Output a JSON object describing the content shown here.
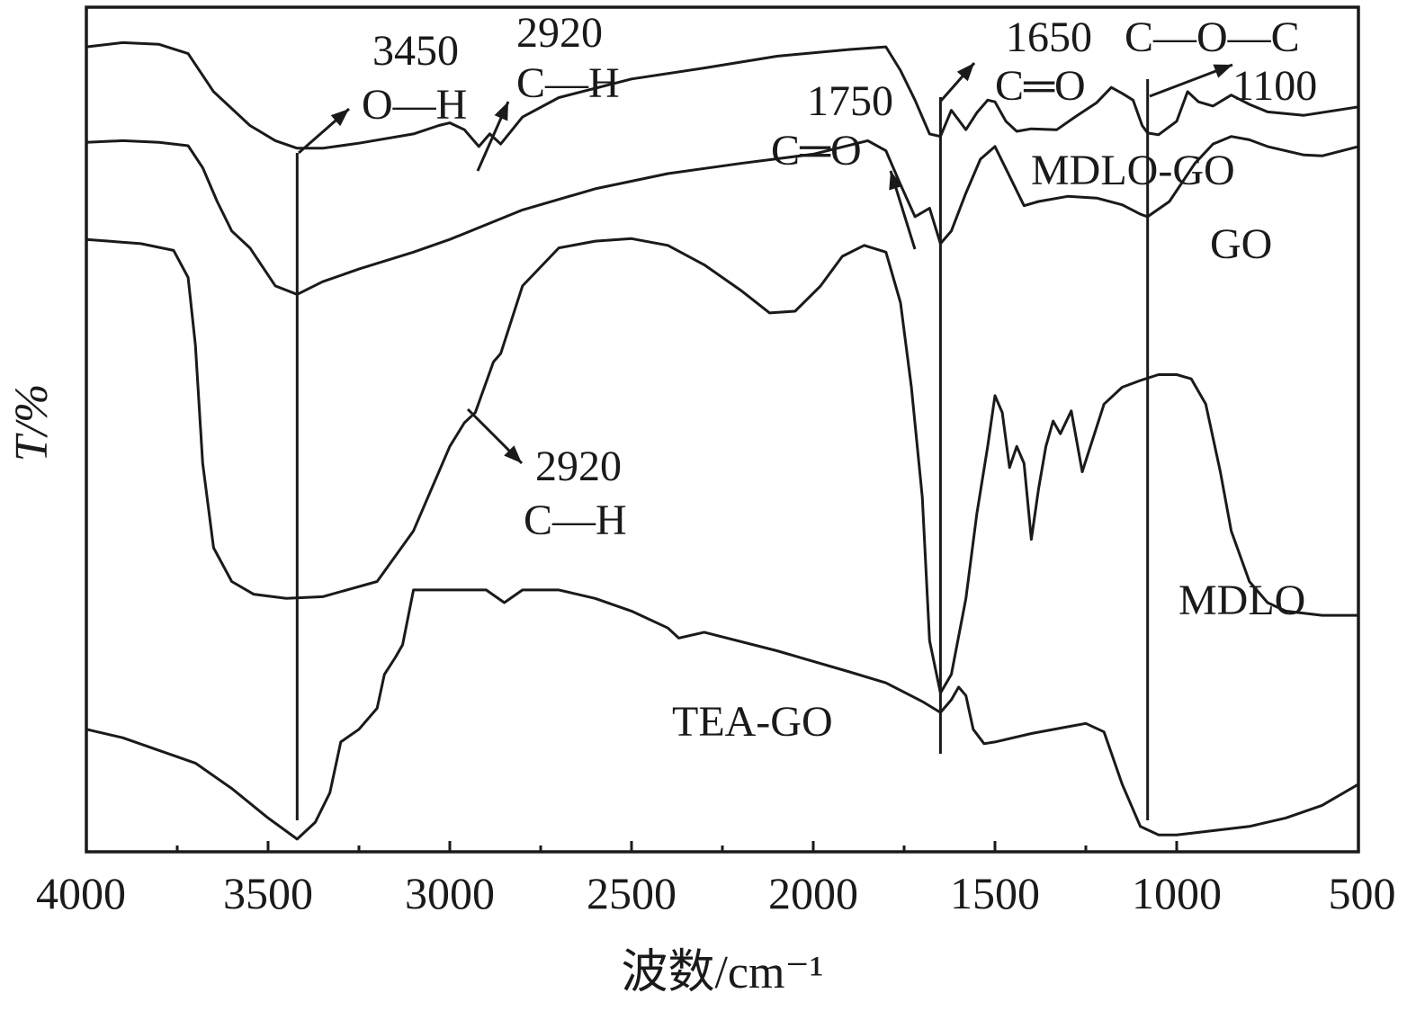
{
  "chart_data": {
    "type": "line",
    "xlabel": "波数/cm⁻¹",
    "ylabel": "T/%",
    "x_range": [
      4000,
      500
    ],
    "x_ticks": [
      4000,
      3500,
      3000,
      2500,
      2000,
      1500,
      1000,
      500
    ],
    "x_tick_labels": [
      "4000",
      "3500",
      "3000",
      "2500",
      "2000",
      "1500",
      "1000",
      "500"
    ],
    "y_ticks_shown": false,
    "legend": "none",
    "grid": false,
    "reference_lines": [
      3420,
      1650,
      1080
    ],
    "series": [
      {
        "name": "MDLO-GO",
        "points": [
          [
            4000,
            95.3
          ],
          [
            3900,
            95.8
          ],
          [
            3800,
            95.6
          ],
          [
            3720,
            94.5
          ],
          [
            3650,
            90
          ],
          [
            3550,
            86
          ],
          [
            3480,
            84.2
          ],
          [
            3420,
            83.3
          ],
          [
            3350,
            83.3
          ],
          [
            3250,
            83.9
          ],
          [
            3100,
            85
          ],
          [
            3030,
            86
          ],
          [
            3000,
            86.3
          ],
          [
            2960,
            85.5
          ],
          [
            2920,
            83.5
          ],
          [
            2890,
            85
          ],
          [
            2860,
            83.8
          ],
          [
            2800,
            87
          ],
          [
            2700,
            89.3
          ],
          [
            2500,
            91.5
          ],
          [
            2300,
            92.8
          ],
          [
            2100,
            94.2
          ],
          [
            1900,
            95
          ],
          [
            1800,
            95.3
          ],
          [
            1760,
            92.5
          ],
          [
            1720,
            89
          ],
          [
            1680,
            85
          ],
          [
            1650,
            84.7
          ],
          [
            1620,
            87.8
          ],
          [
            1580,
            85.5
          ],
          [
            1550,
            87.5
          ],
          [
            1520,
            89
          ],
          [
            1500,
            88.8
          ],
          [
            1470,
            86.5
          ],
          [
            1440,
            85.3
          ],
          [
            1400,
            85.6
          ],
          [
            1330,
            85.5
          ],
          [
            1280,
            87
          ],
          [
            1220,
            88.7
          ],
          [
            1180,
            90.5
          ],
          [
            1150,
            89.8
          ],
          [
            1120,
            89
          ],
          [
            1095,
            86
          ],
          [
            1080,
            85.1
          ],
          [
            1050,
            84.9
          ],
          [
            1000,
            86.5
          ],
          [
            970,
            90
          ],
          [
            940,
            88.8
          ],
          [
            900,
            88.3
          ],
          [
            850,
            89.6
          ],
          [
            800,
            88.5
          ],
          [
            750,
            87.6
          ],
          [
            650,
            87.2
          ],
          [
            500,
            88.2
          ]
        ]
      },
      {
        "name": "GO",
        "points": [
          [
            4000,
            84
          ],
          [
            3900,
            84.2
          ],
          [
            3800,
            84
          ],
          [
            3720,
            83.6
          ],
          [
            3680,
            81
          ],
          [
            3640,
            77
          ],
          [
            3600,
            73.5
          ],
          [
            3550,
            71.5
          ],
          [
            3480,
            67
          ],
          [
            3420,
            66
          ],
          [
            3350,
            67.5
          ],
          [
            3250,
            69
          ],
          [
            3100,
            71
          ],
          [
            3000,
            72.5
          ],
          [
            2800,
            76
          ],
          [
            2600,
            78.5
          ],
          [
            2400,
            80.3
          ],
          [
            2200,
            81.5
          ],
          [
            2000,
            82.6
          ],
          [
            1850,
            84.2
          ],
          [
            1800,
            83
          ],
          [
            1760,
            79
          ],
          [
            1720,
            75.2
          ],
          [
            1680,
            76.2
          ],
          [
            1650,
            72
          ],
          [
            1620,
            73.5
          ],
          [
            1580,
            78
          ],
          [
            1540,
            82
          ],
          [
            1500,
            83.5
          ],
          [
            1460,
            80
          ],
          [
            1420,
            76.5
          ],
          [
            1380,
            77
          ],
          [
            1300,
            77.6
          ],
          [
            1220,
            77.4
          ],
          [
            1150,
            76.6
          ],
          [
            1100,
            75.5
          ],
          [
            1080,
            75.2
          ],
          [
            1020,
            77
          ],
          [
            950,
            81.5
          ],
          [
            900,
            83.8
          ],
          [
            850,
            84.7
          ],
          [
            800,
            84.3
          ],
          [
            750,
            83.5
          ],
          [
            650,
            82.5
          ],
          [
            600,
            82.4
          ],
          [
            500,
            83.5
          ]
        ]
      },
      {
        "name": "MDLO",
        "points": [
          [
            4000,
            72.5
          ],
          [
            3850,
            72
          ],
          [
            3760,
            71.2
          ],
          [
            3720,
            68
          ],
          [
            3700,
            60
          ],
          [
            3680,
            46
          ],
          [
            3650,
            36
          ],
          [
            3600,
            32
          ],
          [
            3540,
            30.5
          ],
          [
            3450,
            30
          ],
          [
            3350,
            30.2
          ],
          [
            3200,
            32
          ],
          [
            3100,
            38
          ],
          [
            3000,
            48
          ],
          [
            2960,
            50.8
          ],
          [
            2930,
            52
          ],
          [
            2880,
            58
          ],
          [
            2860,
            59
          ],
          [
            2800,
            67
          ],
          [
            2700,
            71.5
          ],
          [
            2600,
            72.3
          ],
          [
            2500,
            72.6
          ],
          [
            2400,
            71.8
          ],
          [
            2300,
            69.5
          ],
          [
            2200,
            66.5
          ],
          [
            2120,
            63.8
          ],
          [
            2050,
            64
          ],
          [
            1980,
            67
          ],
          [
            1920,
            70.5
          ],
          [
            1860,
            71.8
          ],
          [
            1800,
            71
          ],
          [
            1760,
            65
          ],
          [
            1730,
            55
          ],
          [
            1700,
            42
          ],
          [
            1680,
            25
          ],
          [
            1650,
            18.8
          ],
          [
            1620,
            21
          ],
          [
            1580,
            30
          ],
          [
            1550,
            40
          ],
          [
            1520,
            48
          ],
          [
            1500,
            54
          ],
          [
            1480,
            52
          ],
          [
            1460,
            45.5
          ],
          [
            1440,
            48
          ],
          [
            1420,
            46
          ],
          [
            1400,
            37
          ],
          [
            1380,
            43
          ],
          [
            1360,
            48
          ],
          [
            1340,
            51
          ],
          [
            1320,
            49.5
          ],
          [
            1290,
            52.2
          ],
          [
            1260,
            45
          ],
          [
            1230,
            49
          ],
          [
            1200,
            53
          ],
          [
            1150,
            55
          ],
          [
            1100,
            55.8
          ],
          [
            1050,
            56.5
          ],
          [
            1000,
            56.5
          ],
          [
            960,
            56
          ],
          [
            920,
            53
          ],
          [
            880,
            45
          ],
          [
            850,
            38
          ],
          [
            800,
            32
          ],
          [
            750,
            29.5
          ],
          [
            700,
            28.5
          ],
          [
            600,
            28
          ],
          [
            500,
            28
          ]
        ]
      },
      {
        "name": "TEA-GO",
        "points": [
          [
            4000,
            14.5
          ],
          [
            3900,
            13.5
          ],
          [
            3800,
            12
          ],
          [
            3700,
            10.5
          ],
          [
            3600,
            7.5
          ],
          [
            3500,
            4
          ],
          [
            3420,
            1.5
          ],
          [
            3370,
            3.5
          ],
          [
            3330,
            7
          ],
          [
            3300,
            13
          ],
          [
            3250,
            14.5
          ],
          [
            3200,
            17
          ],
          [
            3180,
            21
          ],
          [
            3150,
            23
          ],
          [
            3130,
            24.5
          ],
          [
            3100,
            31
          ],
          [
            2900,
            31
          ],
          [
            2850,
            29.5
          ],
          [
            2800,
            31
          ],
          [
            2700,
            31
          ],
          [
            2600,
            30
          ],
          [
            2500,
            28.5
          ],
          [
            2400,
            26.5
          ],
          [
            2370,
            25.3
          ],
          [
            2300,
            26
          ],
          [
            2100,
            23.8
          ],
          [
            1900,
            21.3
          ],
          [
            1800,
            20
          ],
          [
            1700,
            17.8
          ],
          [
            1650,
            16.5
          ],
          [
            1620,
            18
          ],
          [
            1600,
            19.5
          ],
          [
            1580,
            18.5
          ],
          [
            1560,
            14.5
          ],
          [
            1530,
            12.8
          ],
          [
            1500,
            13
          ],
          [
            1400,
            14
          ],
          [
            1300,
            14.8
          ],
          [
            1250,
            15.2
          ],
          [
            1200,
            14.2
          ],
          [
            1150,
            8
          ],
          [
            1100,
            3
          ],
          [
            1050,
            2
          ],
          [
            1000,
            2
          ],
          [
            900,
            2.5
          ],
          [
            800,
            3
          ],
          [
            700,
            4
          ],
          [
            600,
            5.5
          ],
          [
            500,
            8
          ]
        ]
      }
    ],
    "series_labels": [
      "MDLO-GO",
      "GO",
      "MDLO",
      "TEA-GO"
    ],
    "annotations": [
      {
        "line1": "3450",
        "line2": "O—H"
      },
      {
        "line1": "2920",
        "line2": "C—H"
      },
      {
        "line1": "1750",
        "line2": "C═O"
      },
      {
        "line1": "1650",
        "line2": "C═O"
      },
      {
        "line1": "C—O—C",
        "line2": "1100"
      },
      {
        "line1": "2920",
        "line2": "C—H"
      }
    ]
  }
}
